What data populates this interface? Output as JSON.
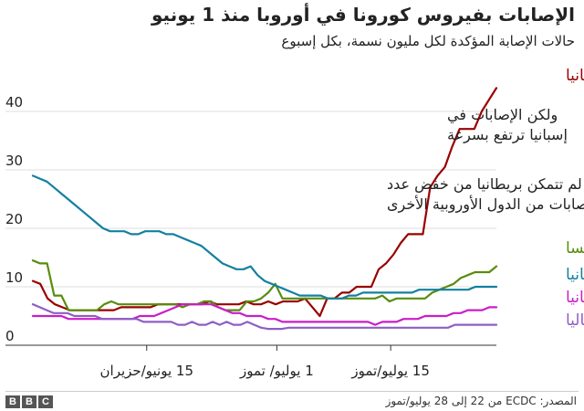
{
  "header": {
    "title": "الإصابات بفيروس كورونا في أوروبا منذ 1 يونيو",
    "subtitle": "حالات الإصابة المؤكدة لكل مليون نسمة، بكل إسبوع"
  },
  "footer": {
    "source": "المصدر: ECDC من 22 إلى 28 يوليو/تموز",
    "logo_letters": [
      "B",
      "B",
      "C"
    ]
  },
  "chart_data": {
    "type": "line",
    "title": "الإصابات بفيروس كورونا في أوروبا منذ 1 يونيو",
    "subtitle": "حالات الإصابة المؤكدة لكل مليون نسمة، بكل إسبوع",
    "xlabel": "",
    "ylabel": "",
    "x_start": "2020-06-01",
    "x_end": "2020-07-28",
    "xlim": [
      "2020-06-01",
      "2020-07-28"
    ],
    "ylim": [
      0,
      45
    ],
    "y_ticks": [
      0,
      10,
      20,
      30,
      40
    ],
    "x_ticks": [
      {
        "date": "2020-06-15",
        "label_lines": [
          "15",
          "يونيو/حزيران"
        ]
      },
      {
        "date": "2020-07-01",
        "label_lines": [
          "1",
          "يوليو/ تموز"
        ]
      },
      {
        "date": "2020-07-15",
        "label_lines": [
          "15",
          "يوليو/تموز"
        ]
      }
    ],
    "grid": true,
    "series": [
      {
        "name": "إسبانيا",
        "color": "#990000",
        "values": [
          11,
          10.5,
          8,
          7,
          6.5,
          6,
          6,
          6,
          6,
          6,
          6,
          6,
          6.5,
          6.5,
          6.5,
          6.5,
          6.5,
          7,
          7,
          7,
          7,
          7,
          7,
          7,
          7.5,
          7,
          7,
          7,
          7,
          7.5,
          7,
          7,
          7.5,
          7,
          7.5,
          7.5,
          7.5,
          8,
          6.5,
          5,
          8,
          8,
          9,
          9,
          10,
          10,
          10,
          13,
          14,
          15.5,
          17.5,
          19,
          19,
          19,
          27,
          29,
          30.5,
          34,
          37,
          37,
          37,
          40,
          42,
          44
        ]
      },
      {
        "name": "فرنسا",
        "color": "#588c0c",
        "values": [
          14.5,
          14,
          14,
          8.5,
          8.5,
          6,
          6,
          6,
          6,
          6,
          7,
          7.5,
          7,
          7,
          7,
          7,
          7,
          7,
          7,
          7,
          7,
          6.5,
          7,
          7,
          7.5,
          7.5,
          6.5,
          6,
          6,
          6,
          7.5,
          7.5,
          8,
          9,
          10.5,
          8,
          8,
          8,
          8,
          8,
          8,
          8,
          8,
          8,
          8,
          8,
          8,
          8,
          8,
          8.5,
          7.5,
          8,
          8,
          8,
          8,
          8,
          9,
          9.5,
          10,
          10.5,
          11.5,
          12,
          12.5,
          12.5,
          12.5,
          13.5
        ]
      },
      {
        "name": "بريطانيا",
        "color": "#1380a1",
        "values": [
          29,
          28.5,
          28,
          27,
          26,
          25,
          24,
          23,
          22,
          21,
          20,
          19.5,
          19.5,
          19.5,
          19,
          19,
          19.5,
          19.5,
          19.5,
          19,
          19,
          18.5,
          18,
          17.5,
          17,
          16,
          15,
          14,
          13.5,
          13,
          13,
          13.5,
          12,
          11,
          10.5,
          10,
          9.5,
          9,
          8.5,
          8.5,
          8.5,
          8.5,
          8,
          8,
          8,
          8.5,
          8.5,
          9,
          9,
          9,
          9,
          9,
          9,
          9,
          9,
          9.5,
          9.5,
          9.5,
          9.5,
          9.5,
          9.5,
          9.5,
          9.5,
          10,
          10,
          10,
          10
        ]
      },
      {
        "name": "إلمانيا",
        "color": "#c91ec9",
        "values": [
          5,
          5,
          5,
          5,
          5,
          4.5,
          4.5,
          4.5,
          4.5,
          4.5,
          4.5,
          4.5,
          4.5,
          4.5,
          4.5,
          5,
          5,
          5,
          5.5,
          6,
          6.5,
          7,
          7,
          7,
          7,
          7,
          6.5,
          6,
          5.5,
          5.5,
          5,
          5,
          5,
          4.5,
          4.5,
          4,
          4,
          4,
          4,
          4,
          4,
          4,
          4,
          4,
          4,
          4,
          4,
          4,
          3.5,
          4,
          4,
          4,
          4.5,
          4.5,
          4.5,
          5,
          5,
          5,
          5,
          5.5,
          5.5,
          6,
          6,
          6,
          6.5,
          6.5
        ]
      },
      {
        "name": "إيطاليا",
        "color": "#8d5fc4",
        "values": [
          7,
          6.5,
          6,
          5.5,
          5.5,
          5.5,
          5,
          5,
          5,
          5,
          4.5,
          4.5,
          4.5,
          4.5,
          4.5,
          4.5,
          4,
          4,
          4,
          4,
          4,
          3.5,
          3.5,
          4,
          3.5,
          3.5,
          4,
          3.5,
          4,
          3.5,
          3.5,
          4,
          3.5,
          3,
          2.8,
          2.8,
          2.8,
          3,
          3,
          3,
          3,
          3,
          3,
          3,
          3,
          3,
          3,
          3,
          3,
          3,
          3,
          3,
          3,
          3,
          3,
          3,
          3,
          3,
          3,
          3,
          3,
          3.5,
          3.5,
          3.5,
          3.5,
          3.5,
          3.5,
          3.5
        ]
      }
    ],
    "annotations": [
      {
        "lines": [
          "ولكن الإصابات في",
          "إسبانيا ترتفع بسرعة"
        ]
      },
      {
        "lines": [
          "لم تتمكن بريطانيا من خفض عدد",
          "الإصابات من الدول الأوروبية الأخرى"
        ]
      }
    ]
  }
}
